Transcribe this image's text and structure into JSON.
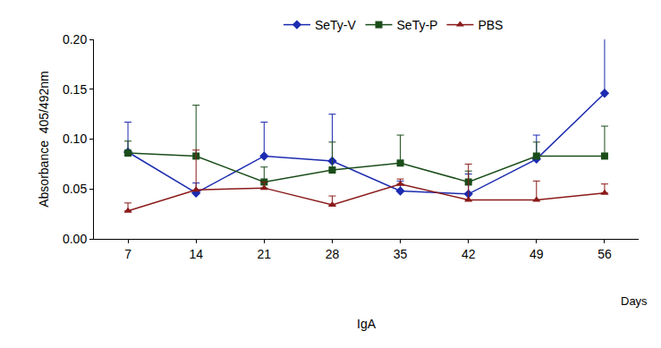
{
  "chart_data": {
    "type": "line",
    "ylabel": "Absorbance  405/492nm",
    "xlabel": "Days",
    "annotations": [
      "IgA"
    ],
    "categories": [
      "7",
      "14",
      "21",
      "28",
      "35",
      "42",
      "49",
      "56"
    ],
    "series": [
      {
        "name": "SeTy-V",
        "color": "#1c2bb0",
        "marker": "diamond",
        "line_style": "solid",
        "values": [
          0.087,
          0.046,
          0.083,
          0.078,
          0.048,
          0.045,
          0.08,
          0.146
        ],
        "errors": [
          0.03,
          0.01,
          0.034,
          0.047,
          0.01,
          0.02,
          0.024,
          0.056
        ]
      },
      {
        "name": "SeTy-P",
        "color": "#1a4d1a",
        "marker": "square",
        "line_style": "solid",
        "values": [
          0.086,
          0.083,
          0.057,
          0.069,
          0.076,
          0.057,
          0.083,
          0.083
        ],
        "errors": [
          0.012,
          0.051,
          0.015,
          0.028,
          0.028,
          0.011,
          0.014,
          0.03
        ]
      },
      {
        "name": "PBS",
        "color": "#8b1a1a",
        "marker": "triangle-up",
        "line_style": "solid",
        "values": [
          0.028,
          0.049,
          0.051,
          0.034,
          0.055,
          0.039,
          0.039,
          0.046
        ],
        "errors": [
          0.008,
          0.04,
          0.006,
          0.009,
          0.005,
          0.036,
          0.019,
          0.009
        ]
      }
    ],
    "ylim": [
      0,
      0.2
    ],
    "yticks": [
      {
        "value": 0,
        "label": "0.00"
      },
      0.05,
      {
        "value": 0.1,
        "label": "0.10"
      },
      0.15,
      {
        "value": 0.2,
        "label": "0.20"
      }
    ],
    "grid": false,
    "legend": "top"
  }
}
